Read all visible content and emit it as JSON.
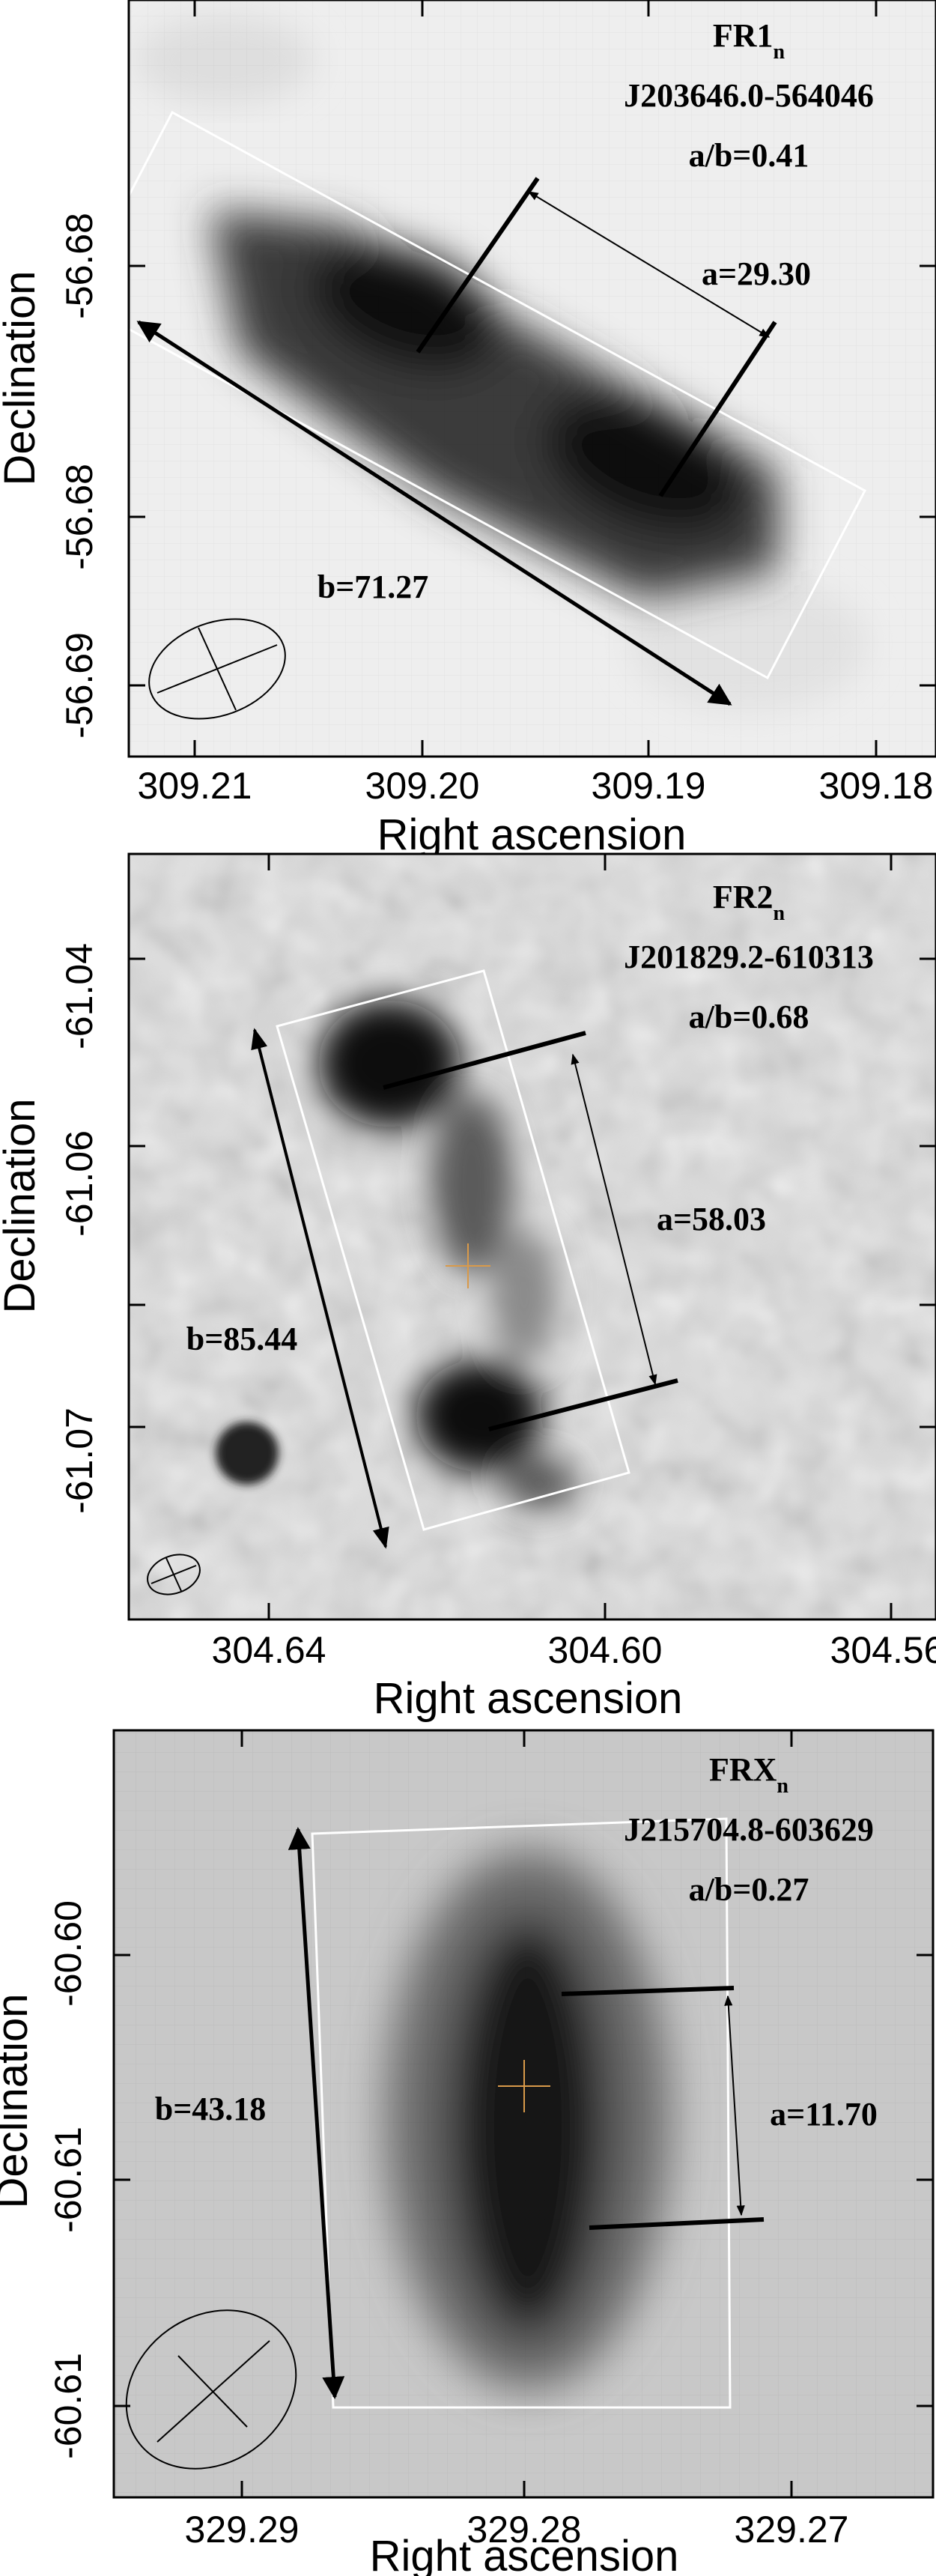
{
  "panels": [
    {
      "id": "fr1",
      "class_main": "FR1",
      "class_sub": "n",
      "source_name": "J203646.0-564046",
      "ratio_label": "a/b=0.41",
      "a_label": "a=29.30",
      "b_label": "b=71.27",
      "ylabel": "Declination",
      "xlabel": "Right ascension",
      "y_ticks": [
        "-56.68",
        "-56.68",
        "-56.69"
      ],
      "x_ticks": [
        "309.21",
        "309.20",
        "309.19",
        "309.18"
      ]
    },
    {
      "id": "fr2",
      "class_main": "FR2",
      "class_sub": "n",
      "source_name": "J201829.2-610313",
      "ratio_label": "a/b=0.68",
      "a_label": "a=58.03",
      "b_label": "b=85.44",
      "ylabel": "Declination",
      "xlabel": "Right ascension",
      "y_ticks": [
        "-61.04",
        "-61.06",
        "-61.07"
      ],
      "x_ticks": [
        "304.64",
        "304.60",
        "304.56"
      ]
    },
    {
      "id": "frx",
      "class_main": "FRX",
      "class_sub": "n",
      "source_name": "J215704.8-603629",
      "ratio_label": "a/b=0.27",
      "a_label": "a=11.70",
      "b_label": "b=43.18",
      "ylabel": "Declination",
      "xlabel": "Right ascension",
      "y_ticks": [
        "-60.60",
        "-60.61",
        "-60.61"
      ],
      "x_ticks": [
        "329.29",
        "329.28",
        "329.27"
      ]
    }
  ],
  "colors": {
    "background": "#ffffff",
    "image_bg_light": "#eeeeee",
    "image_bg_grey": "#c9c9c9",
    "source_dark": "#111111",
    "box_outline": "#ffffff",
    "core_marker": "#d99a4a"
  },
  "icons": [
    "beam-ellipse-icon",
    "core-cross-icon"
  ]
}
